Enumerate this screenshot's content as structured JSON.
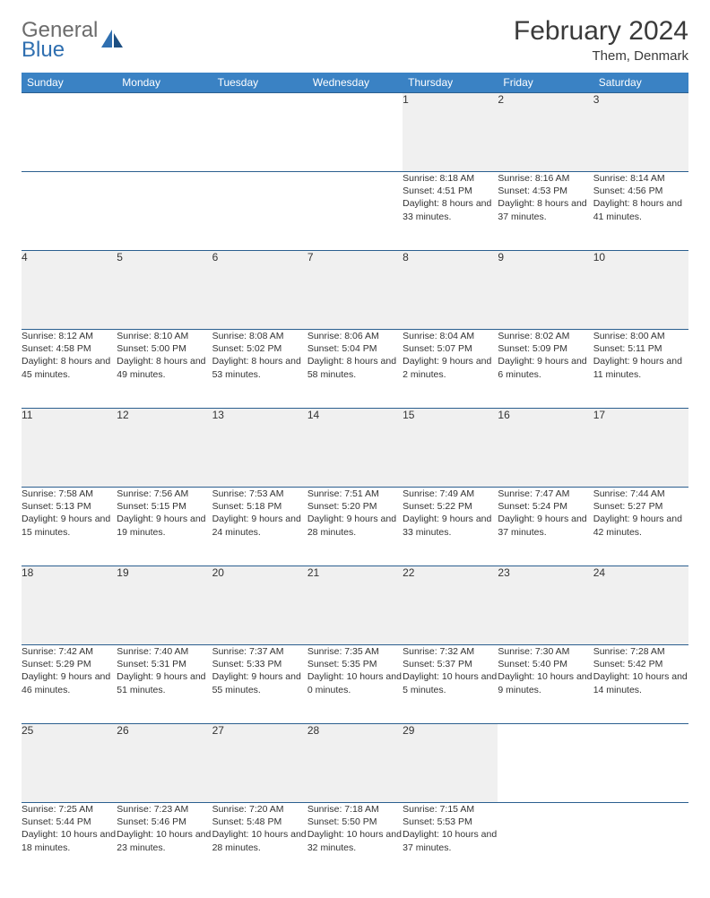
{
  "logo": {
    "text_top": "General",
    "text_bottom": "Blue",
    "sail_color": "#2f6fb0",
    "text_gray": "#6c6c6c"
  },
  "title": "February 2024",
  "location": "Them, Denmark",
  "colors": {
    "header_bg": "#3a82c4",
    "header_text": "#ffffff",
    "row_border": "#2b5f8f",
    "daynum_bg": "#f0f0f0",
    "body_text": "#333333",
    "page_bg": "#ffffff"
  },
  "day_headers": [
    "Sunday",
    "Monday",
    "Tuesday",
    "Wednesday",
    "Thursday",
    "Friday",
    "Saturday"
  ],
  "weeks": [
    [
      null,
      null,
      null,
      null,
      {
        "n": "1",
        "sunrise": "8:18 AM",
        "sunset": "4:51 PM",
        "daylight": "8 hours and 33 minutes."
      },
      {
        "n": "2",
        "sunrise": "8:16 AM",
        "sunset": "4:53 PM",
        "daylight": "8 hours and 37 minutes."
      },
      {
        "n": "3",
        "sunrise": "8:14 AM",
        "sunset": "4:56 PM",
        "daylight": "8 hours and 41 minutes."
      }
    ],
    [
      {
        "n": "4",
        "sunrise": "8:12 AM",
        "sunset": "4:58 PM",
        "daylight": "8 hours and 45 minutes."
      },
      {
        "n": "5",
        "sunrise": "8:10 AM",
        "sunset": "5:00 PM",
        "daylight": "8 hours and 49 minutes."
      },
      {
        "n": "6",
        "sunrise": "8:08 AM",
        "sunset": "5:02 PM",
        "daylight": "8 hours and 53 minutes."
      },
      {
        "n": "7",
        "sunrise": "8:06 AM",
        "sunset": "5:04 PM",
        "daylight": "8 hours and 58 minutes."
      },
      {
        "n": "8",
        "sunrise": "8:04 AM",
        "sunset": "5:07 PM",
        "daylight": "9 hours and 2 minutes."
      },
      {
        "n": "9",
        "sunrise": "8:02 AM",
        "sunset": "5:09 PM",
        "daylight": "9 hours and 6 minutes."
      },
      {
        "n": "10",
        "sunrise": "8:00 AM",
        "sunset": "5:11 PM",
        "daylight": "9 hours and 11 minutes."
      }
    ],
    [
      {
        "n": "11",
        "sunrise": "7:58 AM",
        "sunset": "5:13 PM",
        "daylight": "9 hours and 15 minutes."
      },
      {
        "n": "12",
        "sunrise": "7:56 AM",
        "sunset": "5:15 PM",
        "daylight": "9 hours and 19 minutes."
      },
      {
        "n": "13",
        "sunrise": "7:53 AM",
        "sunset": "5:18 PM",
        "daylight": "9 hours and 24 minutes."
      },
      {
        "n": "14",
        "sunrise": "7:51 AM",
        "sunset": "5:20 PM",
        "daylight": "9 hours and 28 minutes."
      },
      {
        "n": "15",
        "sunrise": "7:49 AM",
        "sunset": "5:22 PM",
        "daylight": "9 hours and 33 minutes."
      },
      {
        "n": "16",
        "sunrise": "7:47 AM",
        "sunset": "5:24 PM",
        "daylight": "9 hours and 37 minutes."
      },
      {
        "n": "17",
        "sunrise": "7:44 AM",
        "sunset": "5:27 PM",
        "daylight": "9 hours and 42 minutes."
      }
    ],
    [
      {
        "n": "18",
        "sunrise": "7:42 AM",
        "sunset": "5:29 PM",
        "daylight": "9 hours and 46 minutes."
      },
      {
        "n": "19",
        "sunrise": "7:40 AM",
        "sunset": "5:31 PM",
        "daylight": "9 hours and 51 minutes."
      },
      {
        "n": "20",
        "sunrise": "7:37 AM",
        "sunset": "5:33 PM",
        "daylight": "9 hours and 55 minutes."
      },
      {
        "n": "21",
        "sunrise": "7:35 AM",
        "sunset": "5:35 PM",
        "daylight": "10 hours and 0 minutes."
      },
      {
        "n": "22",
        "sunrise": "7:32 AM",
        "sunset": "5:37 PM",
        "daylight": "10 hours and 5 minutes."
      },
      {
        "n": "23",
        "sunrise": "7:30 AM",
        "sunset": "5:40 PM",
        "daylight": "10 hours and 9 minutes."
      },
      {
        "n": "24",
        "sunrise": "7:28 AM",
        "sunset": "5:42 PM",
        "daylight": "10 hours and 14 minutes."
      }
    ],
    [
      {
        "n": "25",
        "sunrise": "7:25 AM",
        "sunset": "5:44 PM",
        "daylight": "10 hours and 18 minutes."
      },
      {
        "n": "26",
        "sunrise": "7:23 AM",
        "sunset": "5:46 PM",
        "daylight": "10 hours and 23 minutes."
      },
      {
        "n": "27",
        "sunrise": "7:20 AM",
        "sunset": "5:48 PM",
        "daylight": "10 hours and 28 minutes."
      },
      {
        "n": "28",
        "sunrise": "7:18 AM",
        "sunset": "5:50 PM",
        "daylight": "10 hours and 32 minutes."
      },
      {
        "n": "29",
        "sunrise": "7:15 AM",
        "sunset": "5:53 PM",
        "daylight": "10 hours and 37 minutes."
      },
      null,
      null
    ]
  ],
  "labels": {
    "sunrise": "Sunrise:",
    "sunset": "Sunset:",
    "daylight": "Daylight:"
  }
}
